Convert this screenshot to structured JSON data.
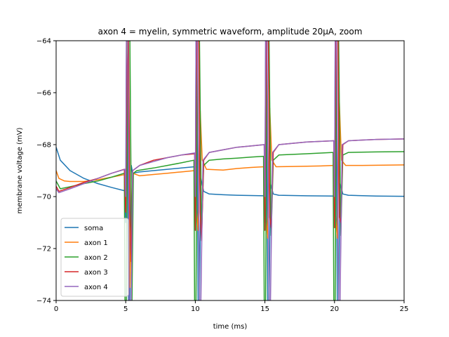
{
  "chart_data": {
    "type": "line",
    "title": "axon 4 = myelin, symmetric waveform, amplitude 20μA, zoom",
    "xlabel": "time (ms)",
    "ylabel": "membrane voltage (mV)",
    "xlim": [
      0,
      25
    ],
    "ylim": [
      -74,
      -64
    ],
    "x_ticks": [
      0,
      5,
      10,
      15,
      20,
      25
    ],
    "y_ticks": [
      -74,
      -72,
      -70,
      -68,
      -66,
      -64
    ],
    "x_tick_labels": [
      "0",
      "5",
      "10",
      "15",
      "20",
      "25"
    ],
    "y_tick_labels": [
      "−74",
      "−72",
      "−70",
      "−68",
      "−66",
      "−64"
    ],
    "grid": false,
    "legend_position": "lower-left",
    "series": [
      {
        "name": "soma",
        "color": "#1f77b4",
        "points": [
          [
            0,
            -68.1
          ],
          [
            0.3,
            -68.6
          ],
          [
            1,
            -69.0
          ],
          [
            2,
            -69.3
          ],
          [
            3,
            -69.5
          ],
          [
            4,
            -69.65
          ],
          [
            4.95,
            -69.78
          ],
          [
            5.0,
            -71.0
          ],
          [
            5.05,
            -64.0
          ],
          [
            5.1,
            -64.0
          ],
          [
            5.2,
            -74.0
          ],
          [
            5.3,
            -74.0
          ],
          [
            5.4,
            -68.8
          ],
          [
            5.5,
            -69.1
          ],
          [
            6,
            -69.05
          ],
          [
            7,
            -69.0
          ],
          [
            8,
            -68.95
          ],
          [
            9,
            -68.9
          ],
          [
            9.95,
            -68.85
          ],
          [
            10.0,
            -70.6
          ],
          [
            10.05,
            -64.0
          ],
          [
            10.1,
            -64.0
          ],
          [
            10.2,
            -74.0
          ],
          [
            10.3,
            -74.0
          ],
          [
            10.4,
            -69.3
          ],
          [
            10.6,
            -69.8
          ],
          [
            11,
            -69.9
          ],
          [
            12,
            -69.93
          ],
          [
            13,
            -69.95
          ],
          [
            14,
            -69.96
          ],
          [
            14.95,
            -69.97
          ],
          [
            15.0,
            -71.0
          ],
          [
            15.05,
            -64.0
          ],
          [
            15.1,
            -64.0
          ],
          [
            15.2,
            -74.0
          ],
          [
            15.3,
            -74.0
          ],
          [
            15.4,
            -69.5
          ],
          [
            15.6,
            -69.9
          ],
          [
            16,
            -69.95
          ],
          [
            18,
            -69.97
          ],
          [
            19.95,
            -69.98
          ],
          [
            20.0,
            -71.0
          ],
          [
            20.05,
            -64.0
          ],
          [
            20.1,
            -64.0
          ],
          [
            20.2,
            -74.0
          ],
          [
            20.3,
            -74.0
          ],
          [
            20.4,
            -69.5
          ],
          [
            20.6,
            -69.9
          ],
          [
            21,
            -69.95
          ],
          [
            23,
            -69.98
          ],
          [
            25,
            -69.99
          ]
        ]
      },
      {
        "name": "axon 1",
        "color": "#ff7f0e",
        "points": [
          [
            0,
            -69.0
          ],
          [
            0.2,
            -69.3
          ],
          [
            0.6,
            -69.4
          ],
          [
            1,
            -69.42
          ],
          [
            2,
            -69.42
          ],
          [
            3,
            -69.35
          ],
          [
            4,
            -69.25
          ],
          [
            4.95,
            -69.15
          ],
          [
            5.0,
            -70.5
          ],
          [
            5.1,
            -64.0
          ],
          [
            5.2,
            -66.9
          ],
          [
            5.3,
            -73.5
          ],
          [
            5.5,
            -69.1
          ],
          [
            6,
            -69.2
          ],
          [
            7,
            -69.15
          ],
          [
            8,
            -69.1
          ],
          [
            9,
            -69.05
          ],
          [
            9.95,
            -69.0
          ],
          [
            10.0,
            -70.0
          ],
          [
            10.2,
            -71.3
          ],
          [
            10.35,
            -66.7
          ],
          [
            10.5,
            -68.6
          ],
          [
            10.8,
            -68.95
          ],
          [
            12,
            -68.98
          ],
          [
            13,
            -68.92
          ],
          [
            14,
            -68.88
          ],
          [
            14.95,
            -68.85
          ],
          [
            15.0,
            -70.2
          ],
          [
            15.2,
            -71.6
          ],
          [
            15.35,
            -66.6
          ],
          [
            15.5,
            -68.6
          ],
          [
            15.8,
            -68.85
          ],
          [
            17,
            -68.84
          ],
          [
            19,
            -68.82
          ],
          [
            19.95,
            -68.8
          ],
          [
            20.0,
            -70.2
          ],
          [
            20.2,
            -71.6
          ],
          [
            20.35,
            -66.4
          ],
          [
            20.5,
            -68.6
          ],
          [
            20.8,
            -68.8
          ],
          [
            22,
            -68.8
          ],
          [
            25,
            -68.78
          ]
        ]
      },
      {
        "name": "axon 2",
        "color": "#2ca02c",
        "points": [
          [
            0,
            -69.4
          ],
          [
            0.3,
            -69.7
          ],
          [
            1,
            -69.62
          ],
          [
            2,
            -69.5
          ],
          [
            3,
            -69.4
          ],
          [
            4,
            -69.25
          ],
          [
            4.9,
            -69.1
          ],
          [
            4.95,
            -74.0
          ],
          [
            5.05,
            -74.0
          ],
          [
            5.15,
            -64.0
          ],
          [
            5.3,
            -64.0
          ],
          [
            5.45,
            -74.0
          ],
          [
            5.55,
            -69.1
          ],
          [
            5.8,
            -69.0
          ],
          [
            7,
            -68.9
          ],
          [
            8,
            -68.8
          ],
          [
            9,
            -68.7
          ],
          [
            9.9,
            -68.6
          ],
          [
            9.95,
            -74.0
          ],
          [
            10.05,
            -74.0
          ],
          [
            10.15,
            -64.0
          ],
          [
            10.3,
            -64.0
          ],
          [
            10.45,
            -71.5
          ],
          [
            10.6,
            -68.8
          ],
          [
            11,
            -68.6
          ],
          [
            12,
            -68.55
          ],
          [
            13,
            -68.52
          ],
          [
            14,
            -68.48
          ],
          [
            14.9,
            -68.45
          ],
          [
            14.95,
            -74.0
          ],
          [
            15.05,
            -74.0
          ],
          [
            15.15,
            -64.0
          ],
          [
            15.3,
            -64.0
          ],
          [
            15.45,
            -71.5
          ],
          [
            15.6,
            -68.6
          ],
          [
            16,
            -68.4
          ],
          [
            18,
            -68.35
          ],
          [
            19.9,
            -68.3
          ],
          [
            19.95,
            -74.0
          ],
          [
            20.05,
            -74.0
          ],
          [
            20.15,
            -64.0
          ],
          [
            20.3,
            -64.0
          ],
          [
            20.45,
            -71.5
          ],
          [
            20.6,
            -68.4
          ],
          [
            21,
            -68.3
          ],
          [
            23,
            -68.28
          ],
          [
            25,
            -68.27
          ]
        ]
      },
      {
        "name": "axon 3",
        "color": "#d62728",
        "points": [
          [
            0,
            -69.6
          ],
          [
            0.2,
            -69.8
          ],
          [
            1,
            -69.65
          ],
          [
            2,
            -69.45
          ],
          [
            3,
            -69.3
          ],
          [
            4,
            -69.1
          ],
          [
            4.9,
            -68.95
          ],
          [
            5.0,
            -70.6
          ],
          [
            5.1,
            -65.0
          ],
          [
            5.2,
            -64.0
          ],
          [
            5.3,
            -70.5
          ],
          [
            5.4,
            -72.5
          ],
          [
            5.5,
            -69.0
          ],
          [
            6,
            -68.8
          ],
          [
            7,
            -68.6
          ],
          [
            8,
            -68.5
          ],
          [
            9,
            -68.4
          ],
          [
            9.95,
            -68.35
          ],
          [
            10.0,
            -71.3
          ],
          [
            10.1,
            -64.0
          ],
          [
            10.25,
            -64.0
          ],
          [
            10.35,
            -70.6
          ],
          [
            10.45,
            -71.7
          ],
          [
            10.6,
            -68.6
          ],
          [
            11,
            -68.3
          ],
          [
            12,
            -68.2
          ],
          [
            13,
            -68.1
          ],
          [
            14,
            -68.05
          ],
          [
            14.95,
            -68.0
          ],
          [
            15.0,
            -71.3
          ],
          [
            15.1,
            -64.0
          ],
          [
            15.25,
            -64.0
          ],
          [
            15.35,
            -70.8
          ],
          [
            15.45,
            -71.2
          ],
          [
            15.6,
            -68.3
          ],
          [
            16,
            -68.0
          ],
          [
            18,
            -67.9
          ],
          [
            19.95,
            -67.85
          ],
          [
            20.0,
            -71.2
          ],
          [
            20.1,
            -64.0
          ],
          [
            20.25,
            -64.0
          ],
          [
            20.35,
            -70.8
          ],
          [
            20.45,
            -71.0
          ],
          [
            20.6,
            -68.0
          ],
          [
            21,
            -67.85
          ],
          [
            23,
            -67.8
          ],
          [
            25,
            -67.78
          ]
        ]
      },
      {
        "name": "axon 4",
        "color": "#9467bd",
        "points": [
          [
            0,
            -69.7
          ],
          [
            0.2,
            -69.85
          ],
          [
            1,
            -69.7
          ],
          [
            2,
            -69.5
          ],
          [
            3,
            -69.3
          ],
          [
            4,
            -69.1
          ],
          [
            4.95,
            -68.95
          ],
          [
            5.0,
            -70.0
          ],
          [
            5.05,
            -64.0
          ],
          [
            5.15,
            -64.0
          ],
          [
            5.25,
            -74.0
          ],
          [
            5.4,
            -74.0
          ],
          [
            5.5,
            -69.0
          ],
          [
            6,
            -68.8
          ],
          [
            7,
            -68.65
          ],
          [
            8,
            -68.5
          ],
          [
            9,
            -68.4
          ],
          [
            9.95,
            -68.32
          ],
          [
            10.0,
            -70.0
          ],
          [
            10.05,
            -64.0
          ],
          [
            10.15,
            -64.0
          ],
          [
            10.3,
            -74.0
          ],
          [
            10.4,
            -74.0
          ],
          [
            10.55,
            -68.6
          ],
          [
            11,
            -68.3
          ],
          [
            12,
            -68.2
          ],
          [
            13,
            -68.1
          ],
          [
            14,
            -68.05
          ],
          [
            14.95,
            -68.0
          ],
          [
            15.0,
            -70.0
          ],
          [
            15.05,
            -64.0
          ],
          [
            15.15,
            -64.0
          ],
          [
            15.3,
            -74.0
          ],
          [
            15.4,
            -74.0
          ],
          [
            15.55,
            -68.3
          ],
          [
            16,
            -68.0
          ],
          [
            18,
            -67.9
          ],
          [
            19.95,
            -67.85
          ],
          [
            20.0,
            -70.0
          ],
          [
            20.05,
            -64.0
          ],
          [
            20.15,
            -64.0
          ],
          [
            20.3,
            -74.0
          ],
          [
            20.4,
            -74.0
          ],
          [
            20.55,
            -68.0
          ],
          [
            21,
            -67.85
          ],
          [
            23,
            -67.8
          ],
          [
            25,
            -67.78
          ]
        ]
      }
    ]
  }
}
